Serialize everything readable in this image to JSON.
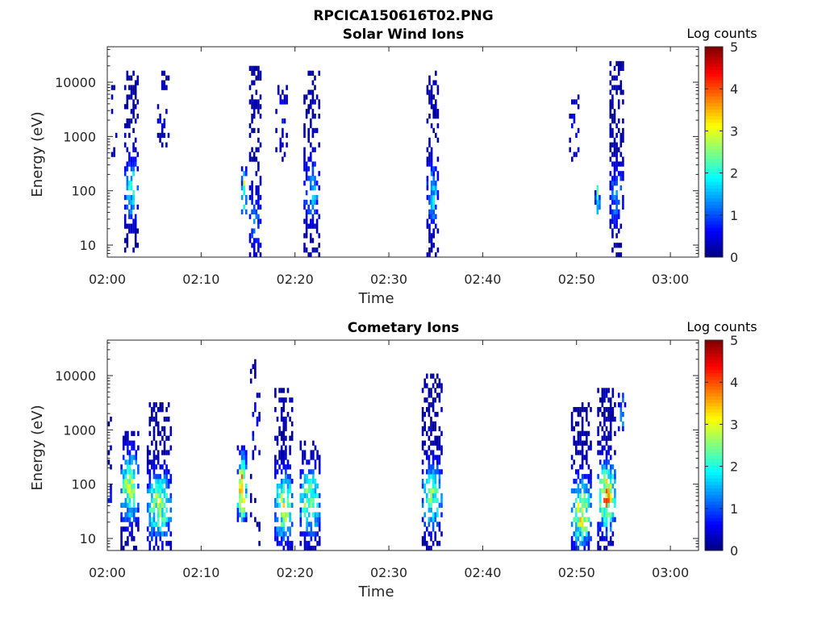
{
  "figure_title": "RPCICA150616T02.PNG",
  "colorbar": {
    "label": "Log counts",
    "ticks": [
      0,
      1,
      2,
      3,
      4,
      5
    ],
    "range": [
      0,
      5
    ],
    "colormap": "jet"
  },
  "chart_data": [
    {
      "type": "heatmap",
      "title": "Solar Wind Ions",
      "xlabel": "Time",
      "ylabel": "Energy (eV)",
      "y_scale": "log",
      "x_tick_labels": [
        "02:00",
        "02:10",
        "02:20",
        "02:30",
        "02:40",
        "02:50",
        "03:00"
      ],
      "y_tick_labels": [
        "10",
        "100",
        "1000",
        "10000"
      ],
      "xlim": [
        "02:00",
        "03:03"
      ],
      "ylim": [
        6,
        45000
      ],
      "z_label": "Log counts",
      "zlim": [
        0,
        5
      ],
      "bursts": [
        {
          "t": "02:00.7",
          "width_min": 0.6,
          "e_lo": 200,
          "e_hi": 8000,
          "peak": 0.6,
          "peak_e": 1500,
          "density": 0.25
        },
        {
          "t": "02:02.6",
          "width_min": 1.6,
          "e_lo": 8,
          "e_hi": 15000,
          "peak": 2.0,
          "peak_e": 110,
          "density": 0.65
        },
        {
          "t": "02:06.0",
          "width_min": 1.4,
          "e_lo": 500,
          "e_hi": 15000,
          "peak": 0.7,
          "peak_e": 3000,
          "density": 0.35
        },
        {
          "t": "02:14.6",
          "width_min": 0.7,
          "e_lo": 40,
          "e_hi": 250,
          "peak": 3.0,
          "peak_e": 80,
          "density": 0.75
        },
        {
          "t": "02:15.8",
          "width_min": 1.4,
          "e_lo": 6,
          "e_hi": 22000,
          "peak": 1.3,
          "peak_e": 30,
          "density": 0.6
        },
        {
          "t": "02:18.6",
          "width_min": 1.4,
          "e_lo": 400,
          "e_hi": 12000,
          "peak": 0.7,
          "peak_e": 2000,
          "density": 0.35
        },
        {
          "t": "02:21.8",
          "width_min": 1.8,
          "e_lo": 6,
          "e_hi": 15000,
          "peak": 1.6,
          "peak_e": 100,
          "density": 0.65
        },
        {
          "t": "02:34.7",
          "width_min": 1.4,
          "e_lo": 6,
          "e_hi": 14000,
          "peak": 1.8,
          "peak_e": 80,
          "density": 0.65
        },
        {
          "t": "02:49.8",
          "width_min": 1.2,
          "e_lo": 400,
          "e_hi": 8000,
          "peak": 0.6,
          "peak_e": 1500,
          "density": 0.25
        },
        {
          "t": "02:52.2",
          "width_min": 0.6,
          "e_lo": 40,
          "e_hi": 120,
          "peak": 2.3,
          "peak_e": 65,
          "density": 0.8
        },
        {
          "t": "02:54.3",
          "width_min": 1.6,
          "e_lo": 6,
          "e_hi": 20000,
          "peak": 1.4,
          "peak_e": 80,
          "density": 0.65
        }
      ]
    },
    {
      "type": "heatmap",
      "title": "Cometary Ions",
      "xlabel": "Time",
      "ylabel": "Energy (eV)",
      "y_scale": "log",
      "x_tick_labels": [
        "02:00",
        "02:10",
        "02:20",
        "02:30",
        "02:40",
        "02:50",
        "03:00"
      ],
      "y_tick_labels": [
        "10",
        "100",
        "1000",
        "10000"
      ],
      "xlim": [
        "02:00",
        "03:03"
      ],
      "ylim": [
        6,
        45000
      ],
      "z_label": "Log counts",
      "zlim": [
        0,
        5
      ],
      "bursts": [
        {
          "t": "02:00.3",
          "width_min": 0.5,
          "e_lo": 30,
          "e_hi": 2000,
          "peak": 1.5,
          "peak_e": 40,
          "density": 0.4
        },
        {
          "t": "02:02.4",
          "width_min": 2.0,
          "e_lo": 6,
          "e_hi": 800,
          "peak": 3.0,
          "peak_e": 90,
          "density": 0.75
        },
        {
          "t": "02:05.5",
          "width_min": 2.6,
          "e_lo": 6,
          "e_hi": 3000,
          "peak": 2.8,
          "peak_e": 40,
          "density": 0.75
        },
        {
          "t": "02:14.4",
          "width_min": 1.2,
          "e_lo": 25,
          "e_hi": 500,
          "peak": 3.9,
          "peak_e": 80,
          "density": 0.8
        },
        {
          "t": "02:15.8",
          "width_min": 1.2,
          "e_lo": 6,
          "e_hi": 18000,
          "peak": 1.0,
          "peak_e": 1000,
          "density": 0.3
        },
        {
          "t": "02:18.8",
          "width_min": 2.0,
          "e_lo": 6,
          "e_hi": 5000,
          "peak": 3.0,
          "peak_e": 40,
          "density": 0.7
        },
        {
          "t": "02:21.6",
          "width_min": 2.2,
          "e_lo": 6,
          "e_hi": 600,
          "peak": 2.8,
          "peak_e": 50,
          "density": 0.7
        },
        {
          "t": "02:34.6",
          "width_min": 2.2,
          "e_lo": 6,
          "e_hi": 10000,
          "peak": 2.5,
          "peak_e": 60,
          "density": 0.7
        },
        {
          "t": "02:50.5",
          "width_min": 2.2,
          "e_lo": 6,
          "e_hi": 3000,
          "peak": 3.2,
          "peak_e": 30,
          "density": 0.7
        },
        {
          "t": "02:53.2",
          "width_min": 2.0,
          "e_lo": 6,
          "e_hi": 5000,
          "peak": 3.6,
          "peak_e": 60,
          "density": 0.75
        },
        {
          "t": "02:54.8",
          "width_min": 0.8,
          "e_lo": 1000,
          "e_hi": 5000,
          "peak": 1.4,
          "peak_e": 2000,
          "density": 0.5
        }
      ]
    }
  ]
}
